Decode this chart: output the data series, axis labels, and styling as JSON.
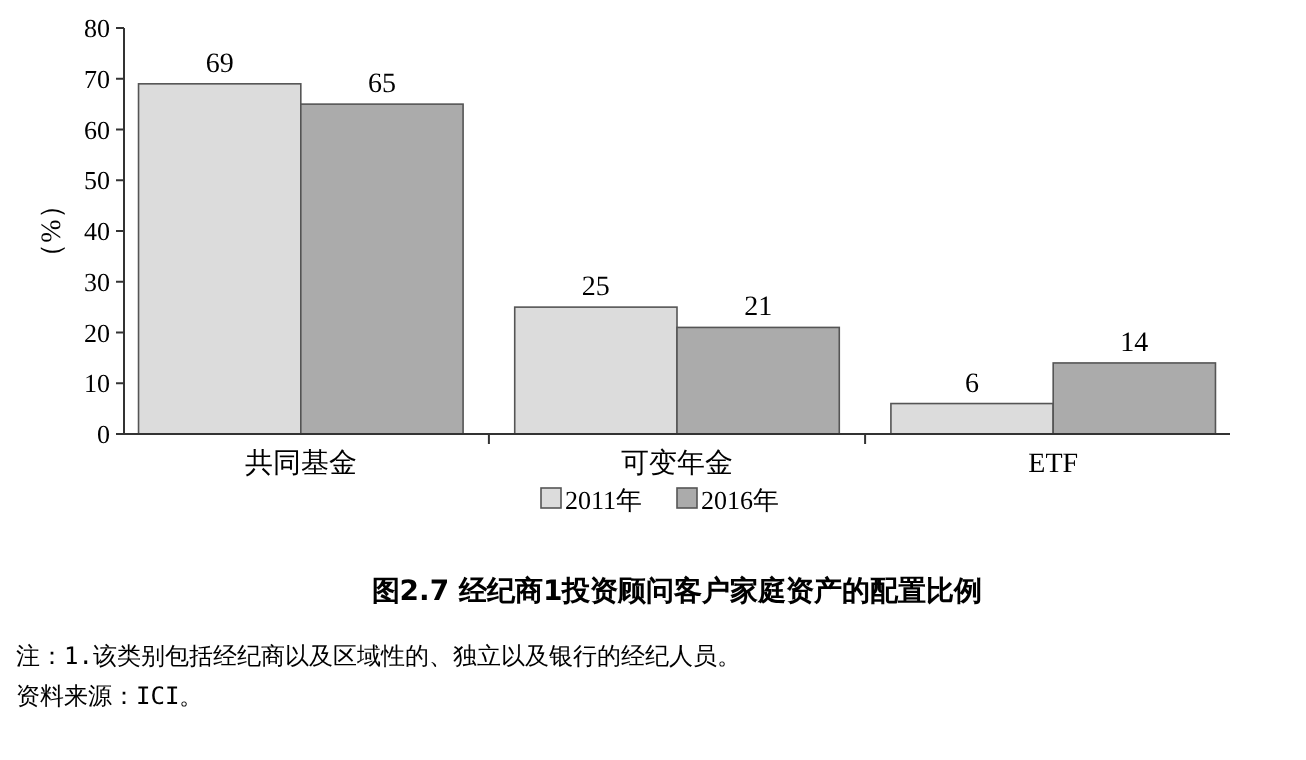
{
  "chart_data": {
    "type": "bar",
    "title": "图2.7 经纪商1投资顾问客户家庭资产的配置比例",
    "ylabel": "（%）",
    "categories": [
      "共同基金",
      "可变年金",
      "ETF"
    ],
    "series": [
      {
        "name": "2011年",
        "color": "#dcdcdc",
        "values": [
          69,
          25,
          6
        ]
      },
      {
        "name": "2016年",
        "color": "#ababab",
        "values": [
          65,
          21,
          14
        ]
      }
    ],
    "ylim": [
      0,
      80
    ],
    "yticks": [
      0,
      10,
      20,
      30,
      40,
      50,
      60,
      70,
      80
    ],
    "data_labels": true,
    "legend": "bottom",
    "grid": false,
    "annotations": [
      "注：1.该类别包括经纪商以及区域性的、独立以及银行的经纪人员。",
      "资料来源：ICI。"
    ]
  }
}
